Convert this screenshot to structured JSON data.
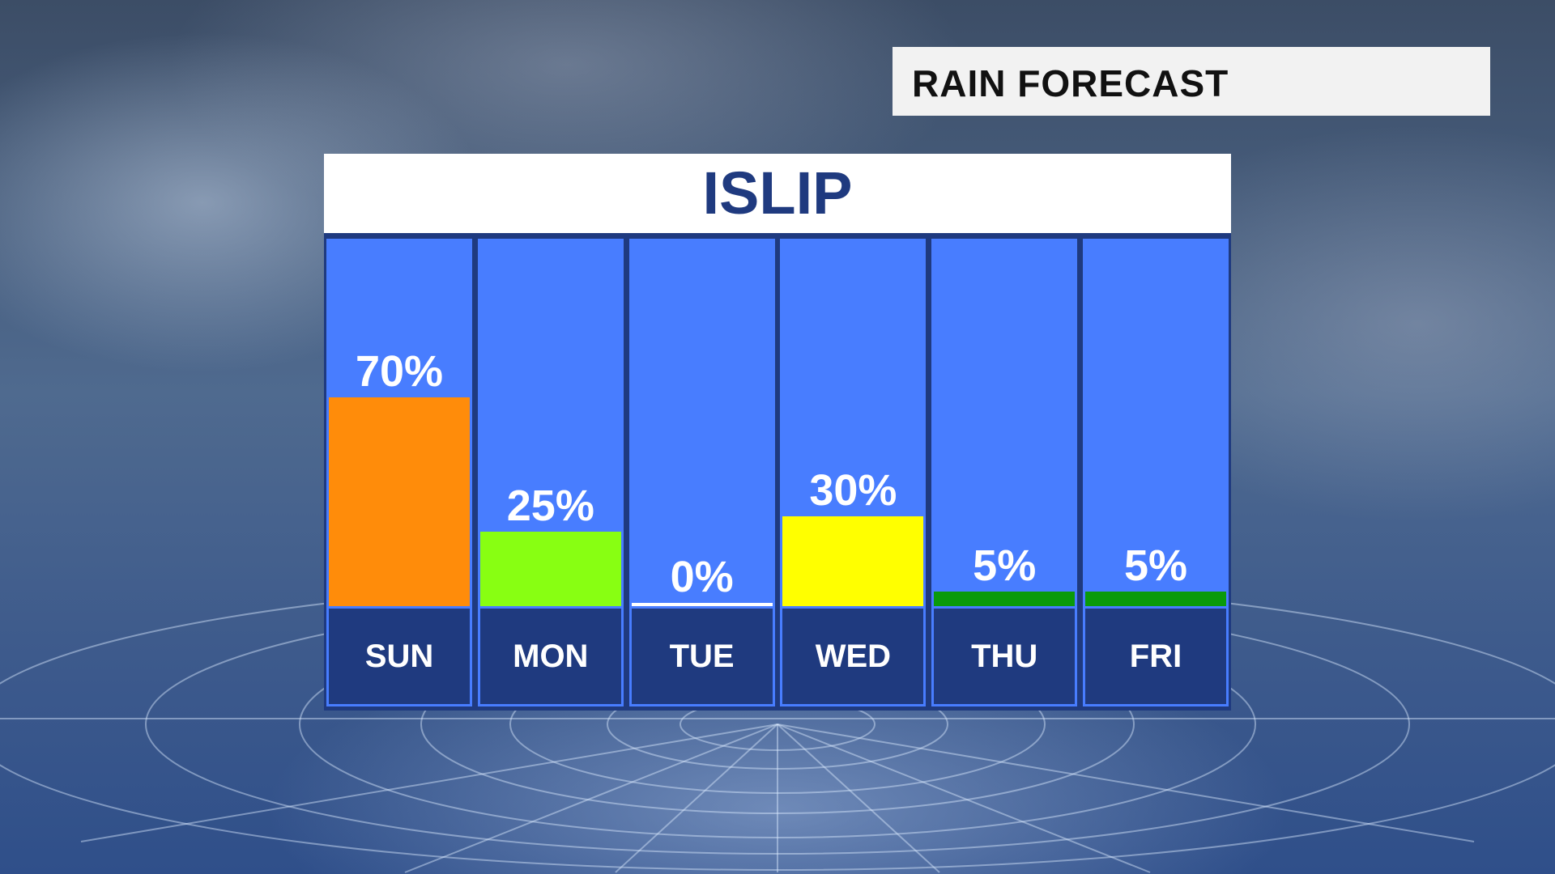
{
  "title": "RAIN FORECAST",
  "location": "ISLIP",
  "chart_data": {
    "type": "bar",
    "title": "ISLIP",
    "categories": [
      "SUN",
      "MON",
      "TUE",
      "WED",
      "THU",
      "FRI"
    ],
    "values": [
      70,
      25,
      0,
      30,
      5,
      5
    ],
    "labels": [
      "70%",
      "25%",
      "0%",
      "30%",
      "5%",
      "5%"
    ],
    "colors": [
      "#ff8c0a",
      "#88ff12",
      "#ffffff",
      "#ffff00",
      "#0a9a0a",
      "#0a9a0a"
    ],
    "ylim": [
      0,
      100
    ],
    "unit": "%"
  }
}
